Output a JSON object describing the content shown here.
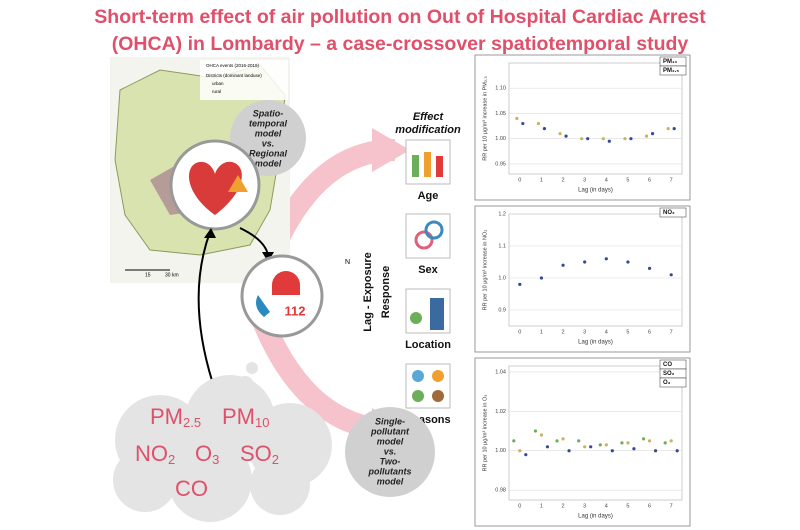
{
  "title_lines": [
    "Short-term effect of air pollution on Out of Hospital Cardiac Arrest",
    "(OHCA) in Lombardy – a case-crossover spatiotemporal study"
  ],
  "map": {
    "legend": [
      "OHCA events (2016-2019)",
      "Districts (dominant landuse)",
      "urban",
      "rural"
    ],
    "scale": [
      "15",
      "30 km"
    ],
    "north": "N"
  },
  "model_bubble": [
    "Spatio-",
    "temporal",
    "model",
    "vs.",
    "Regional",
    "model"
  ],
  "emergency_number": "112",
  "axis_title_lines": [
    "Lag - Exposure",
    "Response"
  ],
  "effect_modification": {
    "title_lines": [
      "Effect",
      "modification"
    ],
    "items": [
      "Age",
      "Sex",
      "Location",
      "Seasons"
    ]
  },
  "pollutants": [
    {
      "base": "PM",
      "sub": "2.5"
    },
    {
      "base": "PM",
      "sub": "10"
    },
    {
      "base": "NO",
      "sub": "2"
    },
    {
      "base": "O",
      "sub": "3"
    },
    {
      "base": "SO",
      "sub": "2"
    },
    {
      "base": "CO",
      "sub": ""
    }
  ],
  "pollutant_bubble": [
    "Single-",
    "pollutant",
    "model",
    "vs.",
    "Two-",
    "pollutants",
    "model"
  ],
  "charts": [
    {
      "type": "scatter",
      "ylabel": "RR per 10 μg/m³ increase in PM₂.₅",
      "xlabel": "Lag (in days)",
      "categories": [
        "0",
        "1",
        "2",
        "3",
        "4",
        "5",
        "6",
        "7"
      ],
      "ylim": [
        0.93,
        1.15
      ],
      "yticks": [
        {
          "value": 0.95,
          "label": "0.95"
        },
        {
          "value": 1.0,
          "label": "1.00"
        },
        {
          "value": 1.05,
          "label": "1.05"
        },
        {
          "value": 1.1,
          "label": "1.10"
        }
      ],
      "series": [
        {
          "name": "PM₁₀",
          "color": "#c9b45a",
          "values": [
            1.04,
            1.03,
            1.01,
            1.0,
            1.0,
            1.0,
            1.005,
            1.02
          ]
        },
        {
          "name": "PM₂.₅",
          "color": "#34499a",
          "values": [
            1.03,
            1.02,
            1.005,
            1.0,
            0.995,
            1.0,
            1.01,
            1.02
          ]
        }
      ]
    },
    {
      "type": "scatter",
      "ylabel": "RR per 10 μg/m³ increase in NO₂",
      "xlabel": "Lag (in days)",
      "categories": [
        "0",
        "1",
        "2",
        "3",
        "4",
        "5",
        "6",
        "7"
      ],
      "ylim": [
        0.85,
        1.2
      ],
      "yticks": [
        0.9,
        {
          "value": 1.0,
          "label": "1.0"
        },
        1.1,
        1.2
      ],
      "series": [
        {
          "name": "NO₂",
          "color": "#34499a",
          "values": [
            0.98,
            1.0,
            1.04,
            1.05,
            1.06,
            1.05,
            1.03,
            1.01
          ]
        }
      ]
    },
    {
      "type": "scatter",
      "ylabel": "RR per 10 μg/m³ increase in O₃",
      "xlabel": "Lag (in days)",
      "categories": [
        "0",
        "1",
        "2",
        "3",
        "4",
        "5",
        "6",
        "7"
      ],
      "ylim": [
        0.975,
        1.043
      ],
      "yticks": [
        0.98,
        {
          "value": 1.0,
          "label": "1.00"
        },
        1.02,
        1.04
      ],
      "series": [
        {
          "name": "CO",
          "color": "#6cae5a",
          "values": [
            1.005,
            1.01,
            1.005,
            1.005,
            1.003,
            1.004,
            1.006,
            1.004
          ]
        },
        {
          "name": "SO₂",
          "color": "#c9b45a",
          "values": [
            1.0,
            1.008,
            1.006,
            1.002,
            1.003,
            1.004,
            1.005,
            1.005
          ]
        },
        {
          "name": "O₃",
          "color": "#34499a",
          "values": [
            0.998,
            1.002,
            1.0,
            1.002,
            1.0,
            1.001,
            1.0,
            1.0
          ]
        }
      ]
    }
  ]
}
